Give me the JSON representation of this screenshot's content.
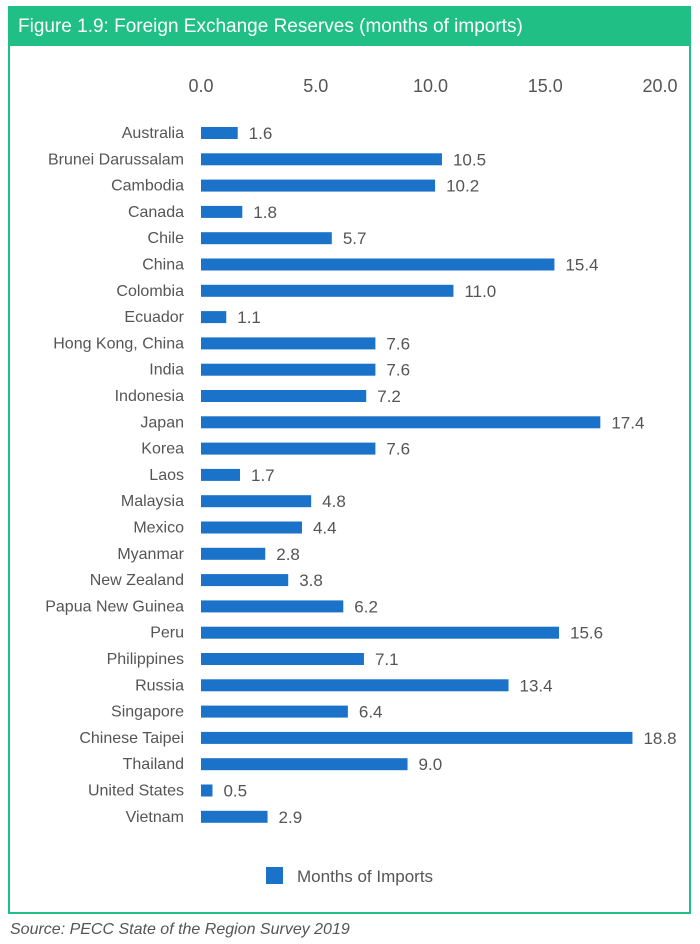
{
  "chart_data": {
    "type": "bar",
    "orientation": "horizontal",
    "title": "Figure 1.9: Foreign Exchange Reserves (months of imports)",
    "categories": [
      "Australia",
      "Brunei Darussalam",
      "Cambodia",
      "Canada",
      "Chile",
      "China",
      "Colombia",
      "Ecuador",
      "Hong Kong, China",
      "India",
      "Indonesia",
      "Japan",
      "Korea",
      "Laos",
      "Malaysia",
      "Mexico",
      "Myanmar",
      "New Zealand",
      "Papua New Guinea",
      "Peru",
      "Philippines",
      "Russia",
      "Singapore",
      "Chinese Taipei",
      "Thailand",
      "United States",
      "Vietnam"
    ],
    "series": [
      {
        "name": "Months of Imports",
        "values": [
          1.6,
          10.5,
          10.2,
          1.8,
          5.7,
          15.4,
          11.0,
          1.1,
          7.6,
          7.6,
          7.2,
          17.4,
          7.6,
          1.7,
          4.8,
          4.4,
          2.8,
          3.8,
          6.2,
          15.6,
          7.1,
          13.4,
          6.4,
          18.8,
          9.0,
          0.5,
          2.9
        ],
        "labels": [
          "1.6",
          "10.5",
          "10.2",
          "1.8",
          "5.7",
          "15.4",
          "11.0",
          "1.1",
          "7.6",
          "7.6",
          "7.2",
          "17.4",
          "7.6",
          "1.7",
          "4.8",
          "4.4",
          "2.8",
          "3.8",
          "6.2",
          "15.6",
          "7.1",
          "13.4",
          "6.4",
          "18.8",
          "9.0",
          "0.5",
          "2.9"
        ]
      }
    ],
    "xlim": [
      0,
      20
    ],
    "xticks": [
      "0.0",
      "5.0",
      "10.0",
      "15.0",
      "20.0"
    ],
    "xtick_values": [
      0,
      5,
      10,
      15,
      20
    ],
    "axis_position": "top",
    "legend_position": "bottom",
    "grid": false
  },
  "source": "Source: PECC State of the Region Survey 2019",
  "colors": {
    "bar": "#1a73c9",
    "accent": "#1fbf86",
    "text": "#555555"
  }
}
